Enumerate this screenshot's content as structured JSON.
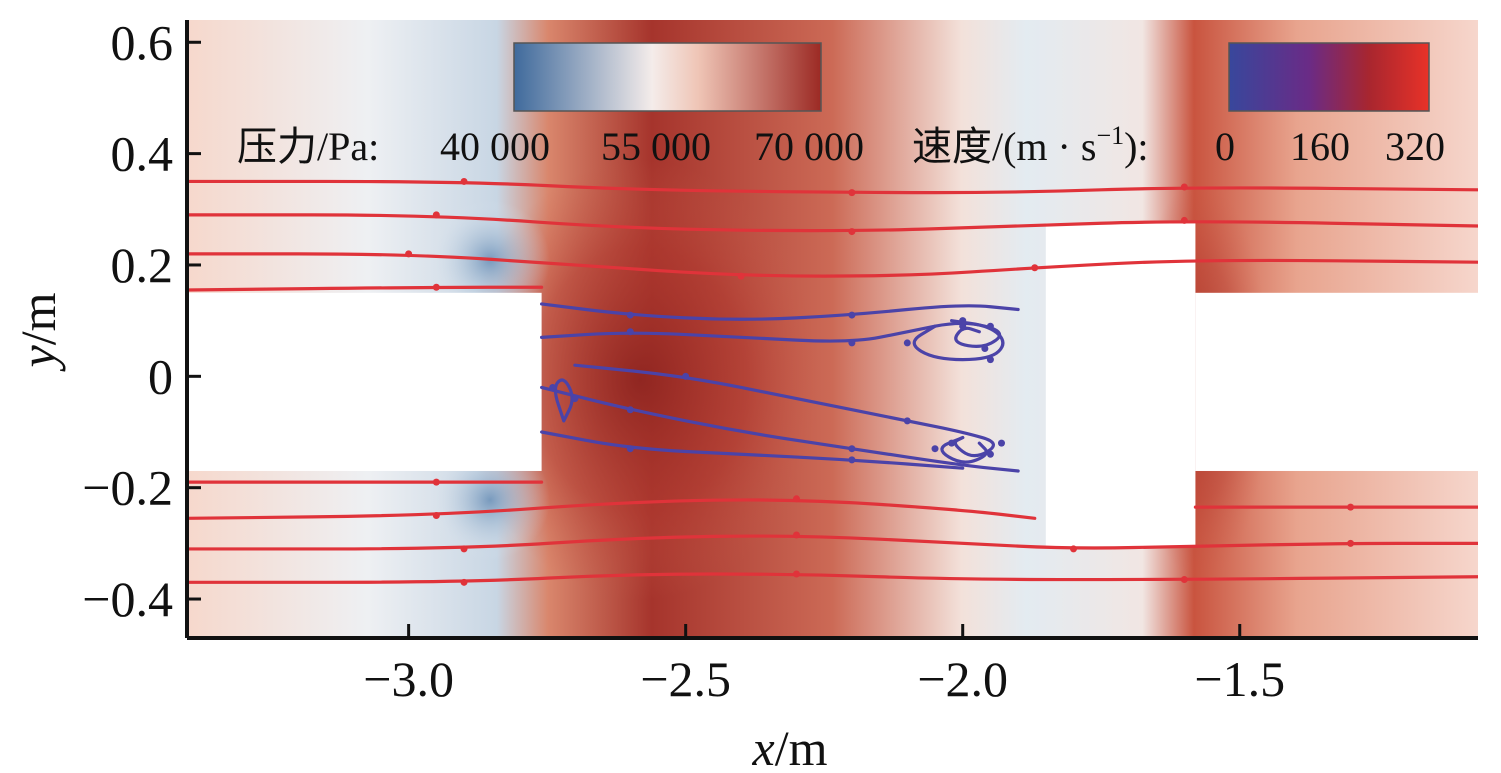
{
  "chart_data": {
    "type": "heatmap",
    "xlabel_var": "x",
    "xlabel_unit": "/m",
    "ylabel_var": "y",
    "ylabel_unit": "/m",
    "xlim": [
      -3.4,
      -1.07
    ],
    "ylim": [
      -0.47,
      0.64
    ],
    "x_ticks": [
      {
        "value": -3.0,
        "label": "−3.0"
      },
      {
        "value": -2.5,
        "label": "−2.5"
      },
      {
        "value": -2.0,
        "label": "−2.0"
      },
      {
        "value": -1.5,
        "label": "−1.5"
      }
    ],
    "y_ticks": [
      {
        "value": 0.6,
        "label": "0.6"
      },
      {
        "value": 0.4,
        "label": "0.4"
      },
      {
        "value": 0.2,
        "label": "0.2"
      },
      {
        "value": 0.0,
        "label": "0"
      },
      {
        "value": -0.2,
        "label": "−0.2"
      },
      {
        "value": -0.4,
        "label": "−0.4"
      }
    ],
    "pressure_legend": {
      "label": "压力/Pa:",
      "ticks": [
        "40 000",
        "55 000",
        "70 000"
      ],
      "colors": [
        "#3f6a9c",
        "#f4ecea",
        "#9c2a24"
      ]
    },
    "velocity_legend": {
      "label_main": "速度/(m · s",
      "label_sup": "−1",
      "label_end": "):",
      "ticks": [
        "0",
        "160",
        "320"
      ],
      "colors": [
        "#38479c",
        "#5e2a8a",
        "#e83228"
      ]
    },
    "solid_blocks": [
      {
        "x": [
          -3.4,
          -2.76
        ],
        "y": [
          -0.17,
          0.15
        ]
      },
      {
        "x": [
          -1.85,
          -1.58
        ],
        "y": [
          -0.305,
          0.275
        ]
      },
      {
        "x": [
          -1.58,
          -1.07
        ],
        "y": [
          -0.17,
          0.15
        ]
      }
    ],
    "streamlines_fast": [
      [
        [
          -3.4,
          0.35
        ],
        [
          -2.9,
          0.35
        ],
        [
          -2.6,
          0.335
        ],
        [
          -2.2,
          0.33
        ],
        [
          -1.9,
          0.33
        ],
        [
          -1.6,
          0.34
        ],
        [
          -1.07,
          0.335
        ]
      ],
      [
        [
          -3.4,
          0.29
        ],
        [
          -2.95,
          0.29
        ],
        [
          -2.6,
          0.265
        ],
        [
          -2.2,
          0.26
        ],
        [
          -1.9,
          0.27
        ],
        [
          -1.6,
          0.28
        ],
        [
          -1.07,
          0.27
        ]
      ],
      [
        [
          -3.4,
          0.22
        ],
        [
          -3.0,
          0.22
        ],
        [
          -2.7,
          0.2
        ],
        [
          -2.4,
          0.18
        ],
        [
          -2.1,
          0.18
        ],
        [
          -1.87,
          0.195
        ],
        [
          -1.58,
          0.21
        ],
        [
          -1.07,
          0.205
        ]
      ],
      [
        [
          -3.4,
          0.155
        ],
        [
          -2.95,
          0.16
        ],
        [
          -2.76,
          0.16
        ]
      ],
      [
        [
          -3.4,
          -0.19
        ],
        [
          -2.95,
          -0.19
        ],
        [
          -2.76,
          -0.19
        ]
      ],
      [
        [
          -3.4,
          -0.255
        ],
        [
          -2.95,
          -0.25
        ],
        [
          -2.6,
          -0.225
        ],
        [
          -2.3,
          -0.22
        ],
        [
          -2.0,
          -0.24
        ],
        [
          -1.87,
          -0.255
        ]
      ],
      [
        [
          -1.58,
          -0.235
        ],
        [
          -1.3,
          -0.235
        ],
        [
          -1.07,
          -0.235
        ]
      ],
      [
        [
          -3.4,
          -0.31
        ],
        [
          -2.9,
          -0.31
        ],
        [
          -2.6,
          -0.29
        ],
        [
          -2.3,
          -0.285
        ],
        [
          -2.0,
          -0.3
        ],
        [
          -1.8,
          -0.31
        ],
        [
          -1.58,
          -0.305
        ],
        [
          -1.3,
          -0.3
        ],
        [
          -1.07,
          -0.3
        ]
      ],
      [
        [
          -3.4,
          -0.37
        ],
        [
          -2.9,
          -0.37
        ],
        [
          -2.6,
          -0.355
        ],
        [
          -2.3,
          -0.355
        ],
        [
          -2.0,
          -0.365
        ],
        [
          -1.6,
          -0.365
        ],
        [
          -1.07,
          -0.36
        ]
      ]
    ],
    "streamlines_slow": [
      [
        [
          -2.76,
          0.13
        ],
        [
          -2.6,
          0.11
        ],
        [
          -2.4,
          0.1
        ],
        [
          -2.2,
          0.11
        ],
        [
          -2.0,
          0.13
        ],
        [
          -1.9,
          0.12
        ]
      ],
      [
        [
          -2.76,
          0.07
        ],
        [
          -2.6,
          0.08
        ],
        [
          -2.4,
          0.07
        ],
        [
          -2.2,
          0.06
        ],
        [
          -2.1,
          0.08
        ],
        [
          -2.0,
          0.1
        ],
        [
          -1.92,
          0.08
        ],
        [
          -1.96,
          0.05
        ],
        [
          -2.02,
          0.06
        ],
        [
          -2.0,
          0.09
        ],
        [
          -1.97,
          0.08
        ]
      ],
      [
        [
          -2.7,
          0.02
        ],
        [
          -2.5,
          0.0
        ],
        [
          -2.3,
          -0.04
        ],
        [
          -2.1,
          -0.08
        ],
        [
          -2.0,
          -0.1
        ],
        [
          -1.93,
          -0.12
        ],
        [
          -1.98,
          -0.15
        ],
        [
          -2.02,
          -0.12
        ],
        [
          -2.0,
          -0.11
        ]
      ],
      [
        [
          -2.76,
          -0.02
        ],
        [
          -2.6,
          -0.06
        ],
        [
          -2.4,
          -0.1
        ],
        [
          -2.2,
          -0.13
        ],
        [
          -2.0,
          -0.16
        ],
        [
          -1.9,
          -0.17
        ]
      ],
      [
        [
          -2.76,
          -0.1
        ],
        [
          -2.6,
          -0.13
        ],
        [
          -2.4,
          -0.14
        ],
        [
          -2.2,
          -0.15
        ],
        [
          -2.0,
          -0.165
        ]
      ],
      [
        [
          -2.72,
          -0.08
        ],
        [
          -2.74,
          -0.02
        ],
        [
          -2.72,
          0.0
        ],
        [
          -2.7,
          -0.04
        ],
        [
          -2.72,
          -0.08
        ]
      ],
      [
        [
          -2.05,
          0.09
        ],
        [
          -2.1,
          0.06
        ],
        [
          -2.05,
          0.03
        ],
        [
          -1.95,
          0.03
        ],
        [
          -1.92,
          0.06
        ],
        [
          -1.95,
          0.09
        ],
        [
          -2.02,
          0.1
        ]
      ],
      [
        [
          -2.0,
          -0.11
        ],
        [
          -2.05,
          -0.13
        ],
        [
          -2.0,
          -0.16
        ],
        [
          -1.95,
          -0.14
        ],
        [
          -1.97,
          -0.12
        ]
      ]
    ],
    "pressure_field_note": ""
  }
}
